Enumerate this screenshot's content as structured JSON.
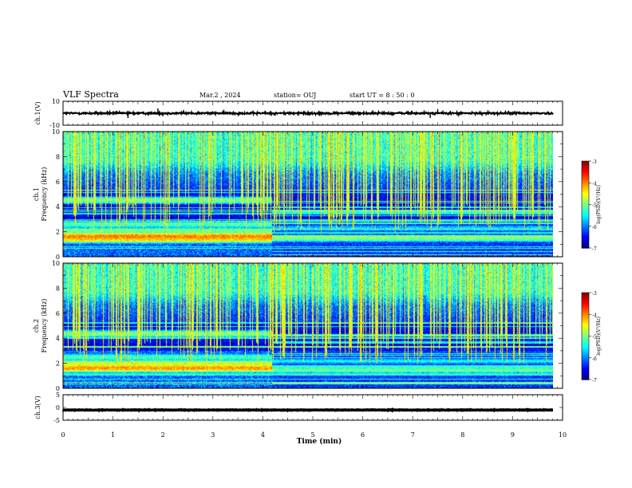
{
  "header": {
    "title": "VLF Spectra",
    "date": "Mar.2  , 2024",
    "station": "station= OUJ",
    "start_ut": "start  UT =   8  : 50 : 0"
  },
  "chart_data": [
    {
      "type": "line",
      "name": "ch1-waveform",
      "ylabel": "ch.1(V)",
      "ylim": [
        -10,
        10
      ],
      "yticks": [
        "10",
        "-10"
      ],
      "xlim": [
        0,
        10
      ],
      "baseline": 0,
      "noise_amplitude": 1.2,
      "spikes": [
        {
          "x": 1.3,
          "y": -4
        },
        {
          "x": 1.9,
          "y": 4
        },
        {
          "x": 2.0,
          "y": -2.5
        },
        {
          "x": 7.35,
          "y": -4
        },
        {
          "x": 7.5,
          "y": 3.5
        }
      ]
    },
    {
      "type": "heatmap",
      "name": "ch1-spectrogram",
      "ylabel_top": "ch.1",
      "ylabel": "Frequency  (kHz)",
      "ylim": [
        0,
        10
      ],
      "yticks": [
        "0",
        "2",
        "4",
        "6",
        "8",
        "10"
      ],
      "xlim": [
        0,
        9.85
      ],
      "colorbar": {
        "label": "log(PSD)(V²/Hz)",
        "range": [
          -7,
          -3
        ],
        "ticks": [
          "-7",
          "-6",
          "-5",
          "-4",
          "-3"
        ]
      },
      "transition_time_min": 4.2,
      "bands_before": [
        {
          "freq_khz": 1.65,
          "log_psd": -4.0
        },
        {
          "freq_khz": 1.45,
          "log_psd": -4.3
        },
        {
          "freq_khz": 2.1,
          "log_psd": -5.0
        },
        {
          "freq_khz": 4.55,
          "log_psd": -5.0
        },
        {
          "freq_khz": 2.6,
          "log_psd": -5.2
        }
      ],
      "bands_after": [
        {
          "freq_khz": 1.5,
          "log_psd": -5.0
        },
        {
          "freq_khz": 2.3,
          "log_psd": -5.6
        }
      ],
      "upper_noise_floor_khz": 6.5,
      "upper_noise_log_psd": -5.0
    },
    {
      "type": "heatmap",
      "name": "ch2-spectrogram",
      "ylabel_top": "ch.2",
      "ylabel": "Frequency  (kHz)",
      "ylim": [
        0,
        10
      ],
      "yticks": [
        "0",
        "2",
        "4",
        "6",
        "8",
        "10"
      ],
      "xlim": [
        0,
        9.85
      ],
      "colorbar": {
        "label": "log(PSD)(V²/Hz)",
        "range": [
          -7,
          -3
        ],
        "ticks": [
          "-7",
          "-6",
          "-5",
          "-4",
          "-3"
        ]
      },
      "transition_time_min": 4.2,
      "bands_before": [
        {
          "freq_khz": 1.65,
          "log_psd": -4.1
        },
        {
          "freq_khz": 2.0,
          "log_psd": -4.6
        },
        {
          "freq_khz": 4.4,
          "log_psd": -5.0
        },
        {
          "freq_khz": 2.5,
          "log_psd": -5.2
        }
      ],
      "bands_after": [
        {
          "freq_khz": 1.5,
          "log_psd": -5.1
        },
        {
          "freq_khz": 2.2,
          "log_psd": -5.6
        }
      ],
      "upper_noise_floor_khz": 6.5,
      "upper_noise_log_psd": -5.0
    },
    {
      "type": "line",
      "name": "ch3-waveform",
      "ylabel": "ch.3(V)",
      "ylim": [
        -5,
        5
      ],
      "yticks": [
        "5",
        "0",
        "-5"
      ],
      "xlim": [
        0,
        10
      ],
      "baseline": -1.0,
      "noise_amplitude": 0.15
    }
  ],
  "x_axis": {
    "xlabel": "Time  (min)",
    "ticks": [
      "0",
      "1",
      "2",
      "3",
      "4",
      "5",
      "6",
      "7",
      "8",
      "9",
      "10"
    ]
  }
}
